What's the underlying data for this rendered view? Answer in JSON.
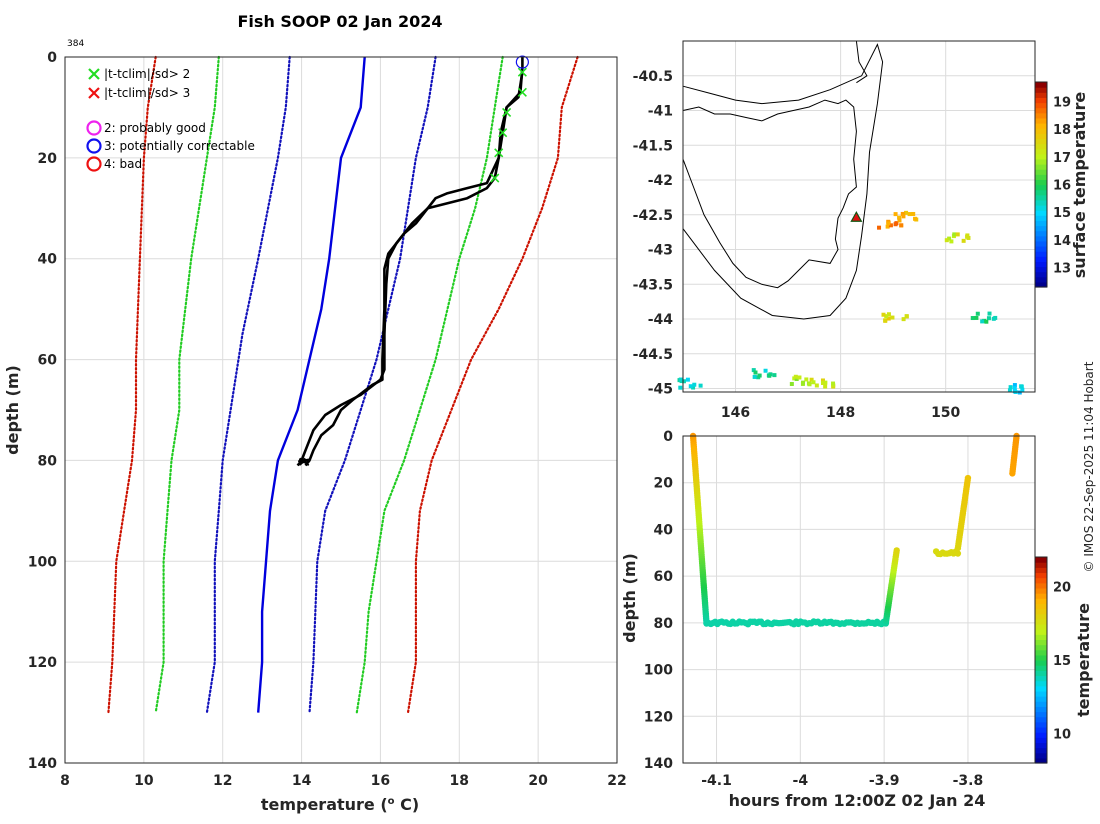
{
  "credit": "© IMOS 22-Sep-2025 11:04 Hobart",
  "chart_data": [
    {
      "type": "line",
      "title": "Fish SOOP 02 Jan 2024",
      "annotation": "384",
      "xlabel": "temperature (",
      "xlabel_sup": "o",
      "xlabel_end": " C)",
      "ylabel": "depth (m)",
      "xlim": [
        8,
        22
      ],
      "ylim": [
        140,
        0
      ],
      "xticks": [
        "8",
        "10",
        "12",
        "14",
        "16",
        "18",
        "20",
        "22"
      ],
      "yticks": [
        "0",
        "20",
        "40",
        "60",
        "80",
        "100",
        "120",
        "140"
      ],
      "legend": [
        {
          "marker": "x",
          "color": "#22dd22",
          "label": "|t-tclim|/sd> 2"
        },
        {
          "marker": "x",
          "color": "#ee1111",
          "label": "|t-tclim|/sd> 3"
        },
        {
          "marker": "o",
          "color": "#ee22ee",
          "label": "2: probably good"
        },
        {
          "marker": "o",
          "color": "#1111ee",
          "label": "3: potentially correctable"
        },
        {
          "marker": "o",
          "color": "#ee1111",
          "label": "4: bad"
        }
      ],
      "series": [
        {
          "name": "clim-3sd-low",
          "color": "#cc1100",
          "style": "dotted",
          "points": [
            [
              10.3,
              0
            ],
            [
              10.1,
              10
            ],
            [
              10.0,
              20
            ],
            [
              9.9,
              40
            ],
            [
              9.8,
              60
            ],
            [
              9.8,
              70
            ],
            [
              9.7,
              80
            ],
            [
              9.5,
              90
            ],
            [
              9.3,
              100
            ],
            [
              9.2,
              120
            ],
            [
              9.1,
              130
            ]
          ]
        },
        {
          "name": "clim-2sd-low",
          "color": "#22cc22",
          "style": "dotted",
          "points": [
            [
              11.9,
              0
            ],
            [
              11.8,
              10
            ],
            [
              11.6,
              20
            ],
            [
              11.2,
              40
            ],
            [
              10.9,
              60
            ],
            [
              10.9,
              70
            ],
            [
              10.7,
              80
            ],
            [
              10.6,
              90
            ],
            [
              10.5,
              100
            ],
            [
              10.5,
              120
            ],
            [
              10.3,
              130
            ]
          ]
        },
        {
          "name": "clim-1sd-low",
          "color": "#1111bb",
          "style": "dotted",
          "points": [
            [
              13.7,
              0
            ],
            [
              13.6,
              10
            ],
            [
              13.4,
              20
            ],
            [
              12.9,
              40
            ],
            [
              12.5,
              55
            ],
            [
              12.2,
              70
            ],
            [
              12.0,
              80
            ],
            [
              11.9,
              90
            ],
            [
              11.8,
              100
            ],
            [
              11.8,
              120
            ],
            [
              11.6,
              130
            ]
          ]
        },
        {
          "name": "clim-mean",
          "color": "#0000dd",
          "style": "solid",
          "points": [
            [
              15.6,
              0
            ],
            [
              15.5,
              10
            ],
            [
              15.0,
              20
            ],
            [
              14.7,
              40
            ],
            [
              14.5,
              50
            ],
            [
              13.9,
              70
            ],
            [
              13.4,
              80
            ],
            [
              13.2,
              90
            ],
            [
              13.0,
              110
            ],
            [
              13.0,
              120
            ],
            [
              12.9,
              130
            ]
          ]
        },
        {
          "name": "clim-1sd-high",
          "color": "#1111bb",
          "style": "dotted",
          "points": [
            [
              17.4,
              0
            ],
            [
              17.2,
              10
            ],
            [
              16.9,
              20
            ],
            [
              16.5,
              40
            ],
            [
              15.9,
              60
            ],
            [
              15.1,
              80
            ],
            [
              14.6,
              90
            ],
            [
              14.4,
              100
            ],
            [
              14.3,
              120
            ],
            [
              14.2,
              130
            ]
          ]
        },
        {
          "name": "clim-2sd-high",
          "color": "#22cc22",
          "style": "dotted",
          "points": [
            [
              19.1,
              0
            ],
            [
              19.0,
              5
            ],
            [
              18.9,
              10
            ],
            [
              18.7,
              20
            ],
            [
              18.4,
              30
            ],
            [
              18.0,
              40
            ],
            [
              17.4,
              60
            ],
            [
              17.0,
              70
            ],
            [
              16.6,
              80
            ],
            [
              16.1,
              90
            ],
            [
              15.9,
              100
            ],
            [
              15.7,
              110
            ],
            [
              15.6,
              120
            ],
            [
              15.4,
              130
            ]
          ]
        },
        {
          "name": "clim-3sd-high",
          "color": "#cc1100",
          "style": "dotted",
          "points": [
            [
              21.0,
              0
            ],
            [
              20.8,
              5
            ],
            [
              20.6,
              10
            ],
            [
              20.5,
              20
            ],
            [
              20.1,
              30
            ],
            [
              19.6,
              40
            ],
            [
              19.0,
              50
            ],
            [
              18.3,
              60
            ],
            [
              17.8,
              70
            ],
            [
              17.3,
              80
            ],
            [
              17.0,
              90
            ],
            [
              16.9,
              100
            ],
            [
              16.9,
              120
            ],
            [
              16.7,
              130
            ]
          ]
        },
        {
          "name": "profile-down",
          "color": "#000000",
          "style": "solid",
          "points": [
            [
              19.6,
              0
            ],
            [
              19.6,
              2
            ],
            [
              19.55,
              7
            ],
            [
              19.2,
              10
            ],
            [
              19.1,
              15
            ],
            [
              19.0,
              20
            ],
            [
              18.7,
              25
            ],
            [
              18.2,
              26
            ],
            [
              17.7,
              27
            ],
            [
              17.4,
              28
            ],
            [
              17.1,
              31
            ],
            [
              16.9,
              33
            ],
            [
              16.6,
              35
            ],
            [
              16.4,
              37
            ],
            [
              16.2,
              39
            ],
            [
              16.1,
              42
            ],
            [
              16.1,
              50
            ],
            [
              16.05,
              60
            ],
            [
              16.05,
              64
            ],
            [
              15.8,
              65
            ],
            [
              15.3,
              68
            ],
            [
              15.0,
              70
            ],
            [
              14.8,
              73
            ],
            [
              14.5,
              75
            ],
            [
              14.3,
              78
            ],
            [
              14.2,
              80
            ],
            [
              14.1,
              81
            ]
          ]
        },
        {
          "name": "profile-up",
          "color": "#000000",
          "style": "solid",
          "points": [
            [
              13.9,
              81
            ],
            [
              14.0,
              80
            ],
            [
              14.1,
              78
            ],
            [
              14.3,
              74
            ],
            [
              14.6,
              71
            ],
            [
              15.0,
              69
            ],
            [
              15.5,
              67
            ],
            [
              16.0,
              64
            ],
            [
              16.1,
              62
            ],
            [
              16.1,
              55
            ],
            [
              16.15,
              45
            ],
            [
              16.2,
              40
            ],
            [
              16.4,
              37
            ],
            [
              16.8,
              33
            ],
            [
              17.2,
              30
            ],
            [
              17.7,
              29
            ],
            [
              18.2,
              28
            ],
            [
              18.7,
              26
            ],
            [
              18.9,
              24
            ],
            [
              19.0,
              20
            ],
            [
              19.05,
              15
            ],
            [
              19.2,
              10
            ],
            [
              19.5,
              8
            ],
            [
              19.6,
              3
            ]
          ]
        }
      ],
      "flags_x": [
        [
          19.6,
          3
        ],
        [
          19.6,
          7
        ],
        [
          19.2,
          11
        ],
        [
          19.1,
          15
        ],
        [
          19.0,
          19
        ],
        [
          18.9,
          24
        ]
      ],
      "flag_circle": [
        19.6,
        1
      ]
    },
    {
      "type": "heatmap",
      "title": "surface temperature map",
      "xlim": [
        145.0,
        151.7
      ],
      "ylim": [
        -45.05,
        -40.0
      ],
      "xticks": [
        "146",
        "148",
        "150"
      ],
      "yticks": [
        "-40.5",
        "-41",
        "-41.5",
        "-42",
        "-42.5",
        "-43",
        "-43.5",
        "-44",
        "-44.5",
        "-45"
      ],
      "colorbar_label": "surface temperature",
      "colorbar_range": [
        12.3,
        19.7
      ],
      "colorbar_ticks": [
        "13",
        "14",
        "15",
        "16",
        "17",
        "18",
        "19"
      ],
      "clusters": [
        {
          "lon": 148.9,
          "lat": -42.6,
          "temp": 18.6
        },
        {
          "lon": 149.2,
          "lat": -42.5,
          "temp": 18.0
        },
        {
          "lon": 150.2,
          "lat": -42.8,
          "temp": 17.2
        },
        {
          "lon": 146.5,
          "lat": -44.75,
          "temp": 15.5
        },
        {
          "lon": 147.2,
          "lat": -44.85,
          "temp": 16.9
        },
        {
          "lon": 147.6,
          "lat": -44.9,
          "temp": 17.3
        },
        {
          "lon": 145.1,
          "lat": -44.9,
          "temp": 15.3
        },
        {
          "lon": 151.3,
          "lat": -44.97,
          "temp": 15.0
        },
        {
          "lon": 150.7,
          "lat": -43.95,
          "temp": 15.6
        },
        {
          "lon": 149.0,
          "lat": -43.95,
          "temp": 17.5
        }
      ],
      "ship_position": {
        "lon": 148.3,
        "lat": -42.55
      }
    },
    {
      "type": "scatter",
      "xlabel": "hours from 12:00Z 02 Jan 24",
      "ylabel": "depth (m)",
      "xlim": [
        -4.14,
        -3.72
      ],
      "ylim": [
        140,
        0
      ],
      "xticks": [
        "-4.1",
        "-4",
        "-3.9",
        "-3.8"
      ],
      "yticks": [
        "0",
        "20",
        "40",
        "60",
        "80",
        "100",
        "120",
        "140"
      ],
      "colorbar_label": "temperature",
      "colorbar_range": [
        8,
        22
      ],
      "colorbar_ticks": [
        "10",
        "15",
        "20"
      ],
      "segments": [
        {
          "t0": -4.128,
          "d0": 0,
          "t1": -4.112,
          "d1": 80,
          "temp0": 19.6,
          "temp1": 14.0
        },
        {
          "t0": -4.112,
          "d0": 80,
          "t1": -3.898,
          "d1": 80,
          "temp0": 14.0,
          "temp1": 14.1
        },
        {
          "t0": -3.898,
          "d0": 80,
          "t1": -3.885,
          "d1": 49,
          "temp0": 14.1,
          "temp1": 18.0
        },
        {
          "t0": -3.838,
          "d0": 50,
          "t1": -3.812,
          "d1": 50,
          "temp0": 17.8,
          "temp1": 17.9
        },
        {
          "t0": -3.812,
          "d0": 48,
          "t1": -3.8,
          "d1": 18,
          "temp0": 18.0,
          "temp1": 18.6
        },
        {
          "t0": -3.747,
          "d0": 16,
          "t1": -3.742,
          "d1": 0,
          "temp0": 19.4,
          "temp1": 19.6
        }
      ]
    }
  ]
}
